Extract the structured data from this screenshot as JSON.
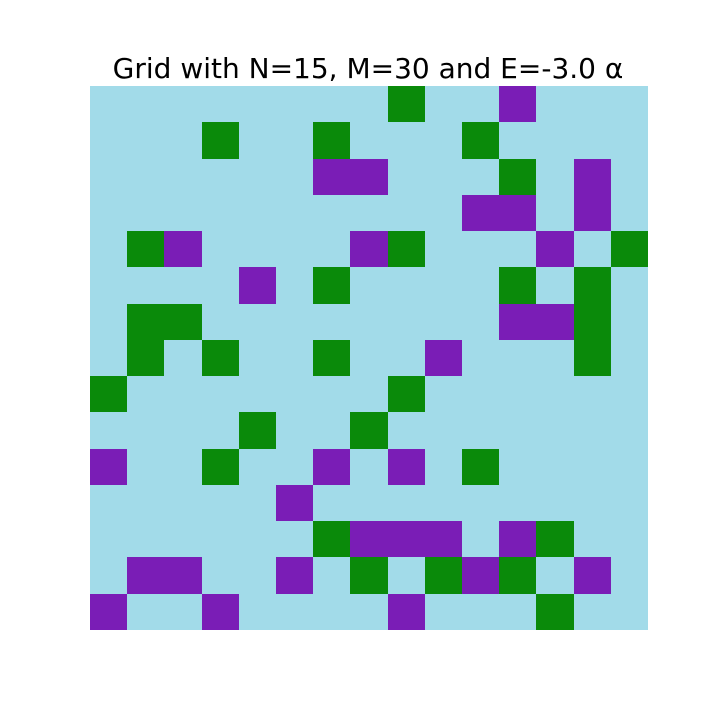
{
  "chart_data": {
    "type": "heatmap",
    "title": "Grid with N=15, M=30 and E=-3.0 α",
    "rows": 15,
    "cols": 15,
    "legend": {
      "0": "empty",
      "1": "green",
      "2": "purple"
    },
    "colors": {
      "0": "#a2dbe9",
      "1": "#0a8a0a",
      "2": "#7a1db6"
    },
    "grid": [
      [
        0,
        0,
        0,
        0,
        0,
        0,
        0,
        0,
        1,
        0,
        0,
        2,
        0,
        0,
        0
      ],
      [
        0,
        0,
        0,
        1,
        0,
        0,
        1,
        0,
        0,
        0,
        1,
        0,
        0,
        0,
        0
      ],
      [
        0,
        0,
        0,
        0,
        0,
        0,
        2,
        2,
        0,
        0,
        0,
        1,
        0,
        2,
        0
      ],
      [
        0,
        0,
        0,
        0,
        0,
        0,
        0,
        0,
        0,
        0,
        2,
        2,
        0,
        2,
        0
      ],
      [
        0,
        1,
        2,
        0,
        0,
        0,
        0,
        2,
        1,
        0,
        0,
        0,
        2,
        0,
        1
      ],
      [
        0,
        0,
        0,
        0,
        2,
        0,
        1,
        0,
        0,
        0,
        0,
        1,
        0,
        1,
        0
      ],
      [
        0,
        1,
        1,
        0,
        0,
        0,
        0,
        0,
        0,
        0,
        0,
        2,
        2,
        1,
        0
      ],
      [
        0,
        1,
        0,
        1,
        0,
        0,
        1,
        0,
        0,
        2,
        0,
        0,
        0,
        1,
        0
      ],
      [
        1,
        0,
        0,
        0,
        0,
        0,
        0,
        0,
        1,
        0,
        0,
        0,
        0,
        0,
        0
      ],
      [
        0,
        0,
        0,
        0,
        1,
        0,
        0,
        1,
        0,
        0,
        0,
        0,
        0,
        0,
        0
      ],
      [
        2,
        0,
        0,
        1,
        0,
        0,
        2,
        0,
        2,
        0,
        1,
        0,
        0,
        0,
        0
      ],
      [
        0,
        0,
        0,
        0,
        0,
        2,
        0,
        0,
        0,
        0,
        0,
        0,
        0,
        0,
        0
      ],
      [
        0,
        0,
        0,
        0,
        0,
        0,
        1,
        2,
        2,
        2,
        0,
        2,
        1,
        0,
        0
      ],
      [
        0,
        2,
        2,
        0,
        0,
        2,
        0,
        1,
        0,
        1,
        2,
        1,
        0,
        2,
        0
      ],
      [
        2,
        0,
        0,
        2,
        0,
        0,
        0,
        0,
        2,
        0,
        0,
        0,
        1,
        0,
        0
      ]
    ],
    "xlabel": "",
    "ylabel": "",
    "grid_lines": false,
    "axes_visible": false
  }
}
